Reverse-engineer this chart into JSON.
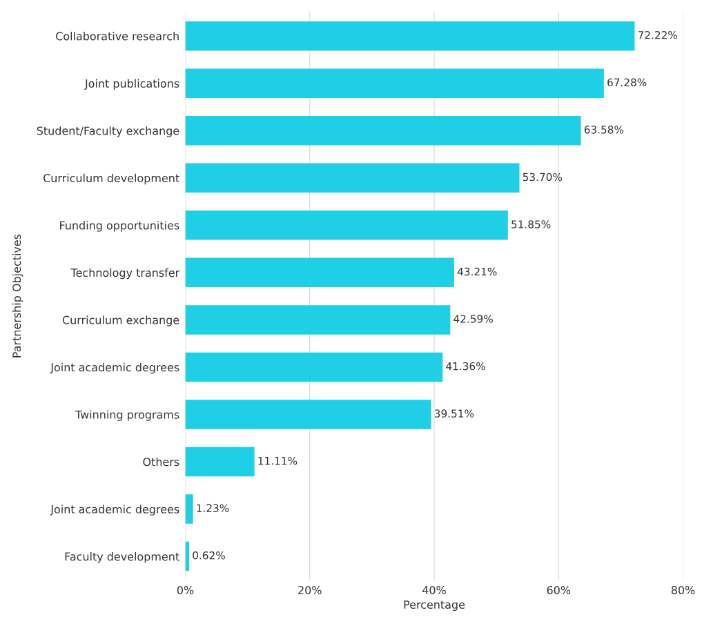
{
  "chart_data": {
    "type": "bar",
    "orientation": "horizontal",
    "xlabel": "Percentage",
    "ylabel": "Partnership Objectives",
    "categories": [
      "Collaborative research",
      "Joint publications",
      "Student/Faculty exchange",
      "Curriculum development",
      "Funding opportunities",
      "Technology transfer",
      "Curriculum exchange",
      "Joint academic degrees",
      "Twinning programs",
      "Others",
      "Joint academic degrees",
      "Faculty development"
    ],
    "values": [
      72.22,
      67.28,
      63.58,
      53.7,
      51.85,
      43.21,
      42.59,
      41.36,
      39.51,
      11.11,
      1.23,
      0.62
    ],
    "value_labels": [
      "72.22%",
      "67.28%",
      "63.58%",
      "53.70%",
      "51.85%",
      "43.21%",
      "42.59%",
      "41.36%",
      "39.51%",
      "11.11%",
      "1.23%",
      "0.62%"
    ],
    "color": "#1fcfe6",
    "xlim": [
      0,
      80
    ],
    "xticks": [
      {
        "value": 0,
        "label": "0%"
      },
      {
        "value": 20,
        "label": "20%"
      },
      {
        "value": 40,
        "label": "40%"
      },
      {
        "value": 60,
        "label": "60%"
      },
      {
        "value": 80,
        "label": "80%"
      }
    ],
    "grid": "x",
    "legend": false
  }
}
